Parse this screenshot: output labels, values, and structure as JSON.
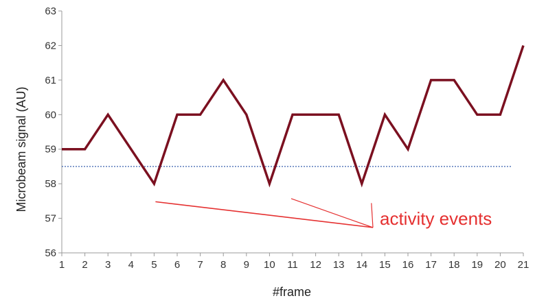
{
  "chart_data": {
    "type": "line",
    "xlabel": "#frame",
    "ylabel": "Microbeam signal (AU)",
    "x": [
      1,
      2,
      3,
      4,
      5,
      6,
      7,
      8,
      9,
      10,
      11,
      12,
      13,
      14,
      15,
      16,
      17,
      18,
      19,
      20,
      21
    ],
    "xlim": [
      1,
      21
    ],
    "ylim": [
      56,
      63
    ],
    "yticks": [
      56,
      57,
      58,
      59,
      60,
      61,
      62,
      63
    ],
    "grid": false,
    "series": [
      {
        "values": [
          59,
          59,
          60,
          59,
          58,
          60,
          60,
          61,
          60,
          58,
          60,
          60,
          60,
          58,
          60,
          59,
          61,
          61,
          60,
          60,
          62
        ],
        "color": "#7b1020"
      }
    ],
    "reference_line": {
      "y": 58.5,
      "x_range": [
        1,
        20.5
      ],
      "style": "dotted",
      "color": "#4a6fb5"
    },
    "annotation": {
      "text": "activity events",
      "color": "#e53030",
      "points_to_frames": [
        5,
        10,
        14
      ]
    }
  }
}
